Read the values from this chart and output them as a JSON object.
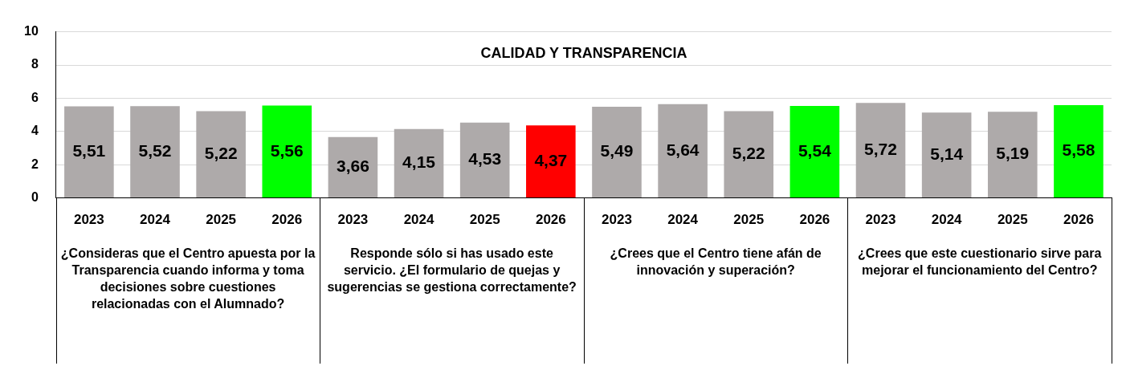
{
  "chart_data": {
    "type": "bar",
    "title": "CALIDAD Y TRANSPARENCIA",
    "categories": [
      "2023",
      "2024",
      "2025",
      "2026",
      "2023",
      "2024",
      "2025",
      "2026",
      "2023",
      "2024",
      "2025",
      "2026",
      "2023",
      "2024",
      "2025",
      "2026"
    ],
    "values": [
      5.51,
      5.52,
      5.22,
      5.56,
      3.66,
      4.15,
      4.53,
      4.37,
      5.49,
      5.64,
      5.22,
      5.54,
      5.72,
      5.14,
      5.19,
      5.58
    ],
    "colors": [
      "#aeaaaa",
      "#aeaaaa",
      "#aeaaaa",
      "#00ff00",
      "#aeaaaa",
      "#aeaaaa",
      "#aeaaaa",
      "#ff0000",
      "#aeaaaa",
      "#aeaaaa",
      "#aeaaaa",
      "#00ff00",
      "#aeaaaa",
      "#aeaaaa",
      "#aeaaaa",
      "#00ff00"
    ],
    "value_labels": [
      "5,51",
      "5,52",
      "5,22",
      "5,56",
      "3,66",
      "4,15",
      "4,53",
      "4,37",
      "5,49",
      "5,64",
      "5,22",
      "5,54",
      "5,72",
      "5,14",
      "5,19",
      "5,58"
    ],
    "ylim": [
      0,
      10
    ],
    "yticks": [
      0,
      2,
      4,
      6,
      8,
      10
    ],
    "grid": "y",
    "legend": false,
    "annotations": [
      "¿Consideras que el Centro apuesta por la Transparencia cuando informa y toma decisiones sobre cuestiones relacionadas con el Alumnado?",
      "Responde sólo si has usado este servicio. ¿El formulario de quejas y sugerencias se gestiona correctamente?",
      "¿Crees que el Centro tiene afán de innovación y superación?",
      "¿Crees que este cuestionario sirve para mejorar el funcionamiento del Centro?"
    ]
  }
}
